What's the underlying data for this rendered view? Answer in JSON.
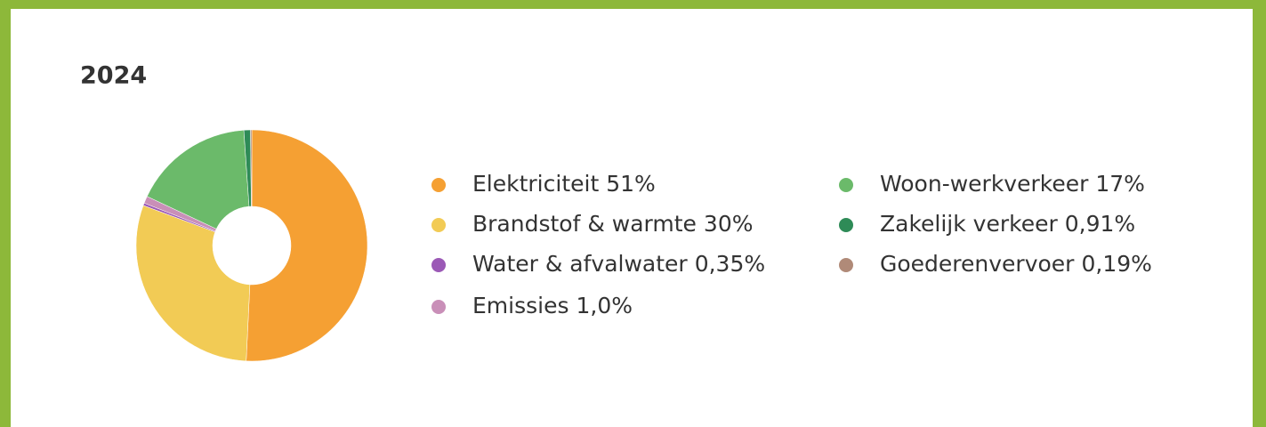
{
  "chart_data": {
    "type": "donut",
    "title": "2024",
    "categories": [
      "Elektriciteit",
      "Brandstof & warmte",
      "Water & afvalwater",
      "Emissies",
      "Woon-werkverkeer",
      "Zakelijk verkeer",
      "Goederenvervoer"
    ],
    "values": [
      51,
      30,
      0.35,
      1.0,
      17,
      0.91,
      0.19
    ],
    "value_labels": [
      "51%",
      "30%",
      "0,35%",
      "1,0%",
      "17%",
      "0,91%",
      "0,19%"
    ],
    "colors": [
      "#f5a033",
      "#f2cb55",
      "#9b59b6",
      "#c98fb8",
      "#6bba6a",
      "#2e8b57",
      "#b08a78"
    ],
    "legend": "right"
  }
}
